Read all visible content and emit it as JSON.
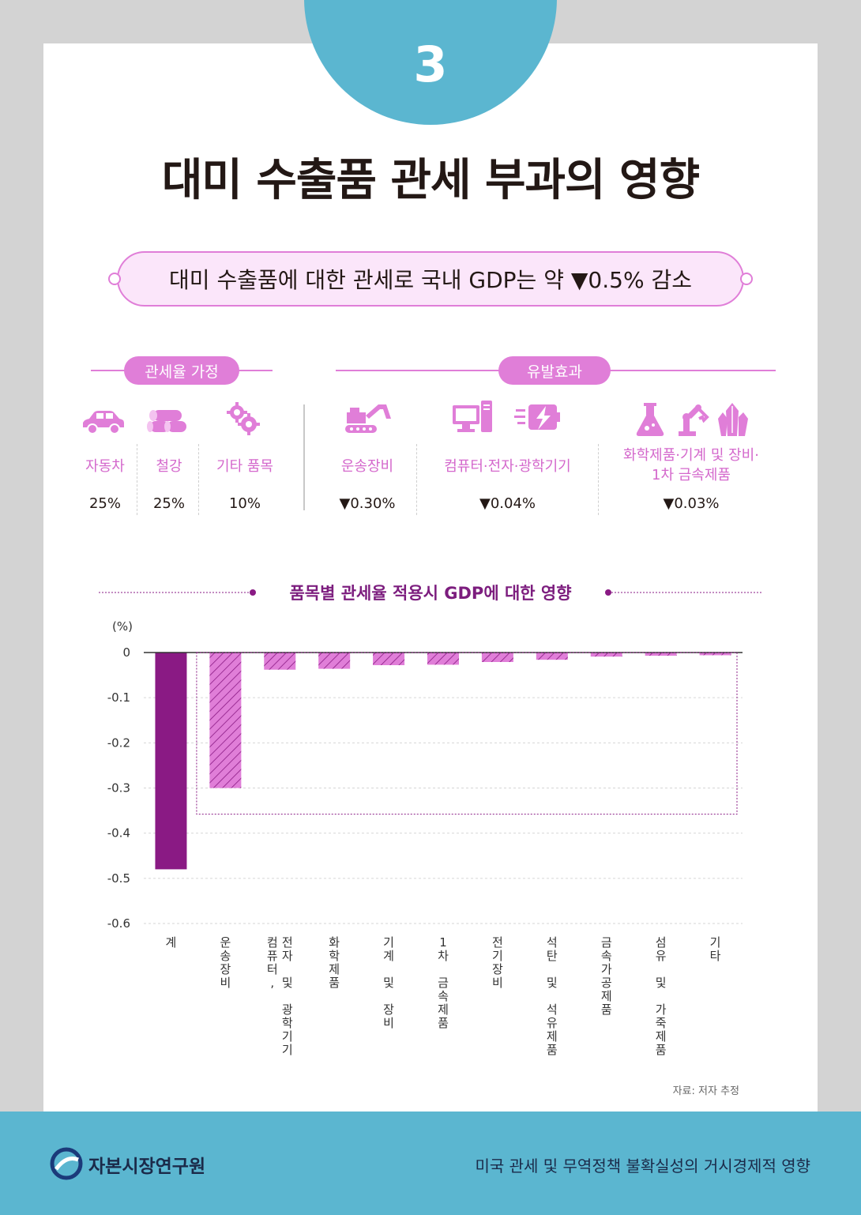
{
  "page": {
    "number": "3",
    "title": "대미 수출품 관세 부과의 영향",
    "banner": "대미 수출품에 대한 관세로 국내 GDP는 약 ▼0.5% 감소"
  },
  "tariff_assumption": {
    "heading": "관세율 가정",
    "items": [
      {
        "label": "자동차",
        "value": "25%",
        "icon": "car-icon"
      },
      {
        "label": "철강",
        "value": "25%",
        "icon": "steel-pipes-icon"
      },
      {
        "label": "기타 품목",
        "value": "10%",
        "icon": "gears-icon"
      }
    ]
  },
  "spillover": {
    "heading": "유발효과",
    "items": [
      {
        "label": "운송장비",
        "value": "▼0.30%",
        "icon": "excavator-icon"
      },
      {
        "label": "컴퓨터·전자·광학기기",
        "value": "▼0.04%",
        "icon": "computer-battery-icon"
      },
      {
        "label_line1": "화학제품·기계 및 장비·",
        "label_line2": "1차 금속제품",
        "value": "▼0.03%",
        "icon": "flask-robot-crystal-icon"
      }
    ]
  },
  "chart_title": "품목별 관세율 적용시 GDP에 대한 영향",
  "chart_data": {
    "type": "bar",
    "ylabel": "(%)",
    "ylim": [
      -0.6,
      0
    ],
    "yticks": [
      "0",
      "-0.1",
      "-0.2",
      "-0.3",
      "-0.4",
      "-0.5",
      "-0.6"
    ],
    "categories": [
      "계",
      "운송장비",
      "컴퓨터, 전자 및 광학기기",
      "화학제품",
      "기계 및 장비",
      "1차 금속제품",
      "전기장비",
      "석탄 및 석유제품",
      "금속가공제품",
      "섬유 및 가죽제품",
      "기타"
    ],
    "category_labels": [
      [
        "계"
      ],
      [
        "운송장비"
      ],
      [
        "컴퓨터,",
        "전자 및 광학기기"
      ],
      [
        "화학제품"
      ],
      [
        "기계 및 장비"
      ],
      [
        "1차 금속제품"
      ],
      [
        "전기장비"
      ],
      [
        "석탄 및 석유제품"
      ],
      [
        "금속가공제품"
      ],
      [
        "섬유 및 가죽제품"
      ],
      [
        "기타"
      ]
    ],
    "values": [
      -0.48,
      -0.3,
      -0.038,
      -0.036,
      -0.028,
      -0.027,
      -0.021,
      -0.016,
      -0.009,
      -0.007,
      -0.006
    ],
    "total_color": "#8a1a84",
    "item_color": "#e07ed8",
    "grid": true
  },
  "source": "자료: 저자 추정",
  "footer": {
    "org": "자본시장연구원",
    "report": "미국 관세 및 무역정책 불확실성의 거시경제적 영향"
  }
}
